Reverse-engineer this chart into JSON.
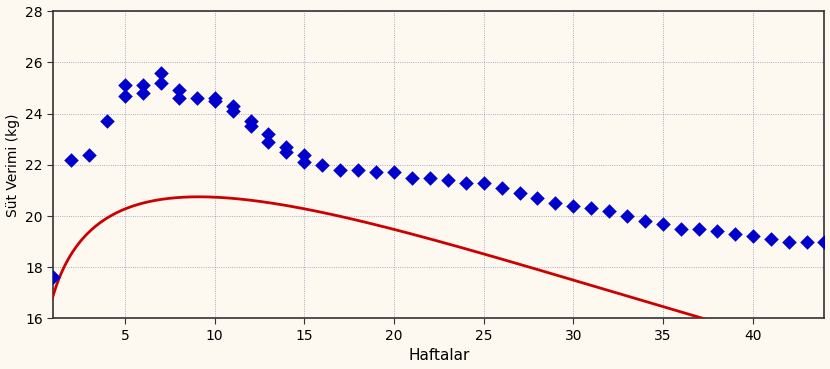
{
  "title": "",
  "xlabel": "Haftalar",
  "ylabel": "Süt Verimi (kg)",
  "background_color": "#fdf8f0",
  "scatter_color": "#0000cd",
  "line_color": "#cc0000",
  "xlim": [
    1,
    44
  ],
  "ylim": [
    16,
    28
  ],
  "xticks": [
    5,
    10,
    15,
    20,
    25,
    30,
    35,
    40
  ],
  "yticks": [
    16,
    18,
    20,
    22,
    24,
    26,
    28
  ],
  "wood_a": 17.2,
  "wood_b": 0.155,
  "wood_c": 0.017,
  "gsv_weeks": [
    1,
    2,
    3,
    4,
    5,
    5,
    6,
    6,
    7,
    7,
    8,
    8,
    9,
    10,
    10,
    11,
    11,
    12,
    12,
    13,
    13,
    14,
    14,
    15,
    15,
    16,
    17,
    18,
    19,
    20,
    21,
    22,
    23,
    24,
    25,
    26,
    27,
    28,
    29,
    30,
    31,
    32,
    33,
    34,
    35,
    36,
    37,
    38,
    39,
    40,
    41,
    42,
    43,
    44
  ],
  "gsv_values": [
    17.6,
    22.2,
    22.4,
    23.7,
    24.7,
    25.1,
    24.8,
    25.1,
    25.6,
    25.2,
    24.9,
    24.6,
    24.6,
    24.6,
    24.5,
    24.3,
    24.1,
    23.7,
    23.5,
    23.2,
    22.9,
    22.7,
    22.5,
    22.4,
    22.1,
    22.0,
    21.8,
    21.8,
    21.7,
    21.7,
    21.5,
    21.5,
    21.4,
    21.3,
    21.3,
    21.1,
    20.9,
    20.7,
    20.5,
    20.4,
    20.3,
    20.2,
    20.0,
    19.8,
    19.7,
    19.5,
    19.5,
    19.4,
    19.3,
    19.2,
    19.1,
    19.0,
    19.0,
    19.0
  ]
}
